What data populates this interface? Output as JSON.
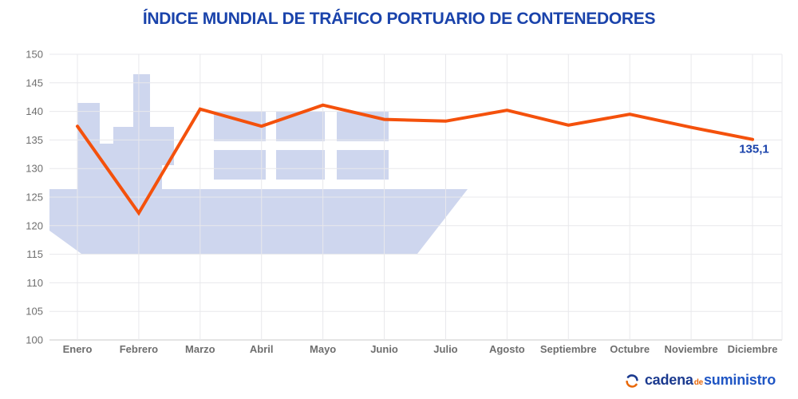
{
  "header": {
    "title": "ÍNDICE MUNDIAL DE TRÁFICO PORTUARIO DE CONTENEDORES"
  },
  "chart_data": {
    "type": "line",
    "title": "ÍNDICE MUNDIAL DE TRÁFICO PORTUARIO DE CONTENEDORES",
    "categories": [
      "Enero",
      "Febrero",
      "Marzo",
      "Abril",
      "Mayo",
      "Junio",
      "Julio",
      "Agosto",
      "Septiembre",
      "Octubre",
      "Noviembre",
      "Diciembre"
    ],
    "values": [
      137.4,
      122.2,
      140.4,
      137.4,
      141.1,
      138.6,
      138.3,
      140.2,
      137.6,
      139.5,
      137.2,
      135.1
    ],
    "yticks": [
      100,
      105,
      110,
      115,
      120,
      125,
      130,
      135,
      140,
      145,
      150
    ],
    "ylim": [
      100,
      150
    ],
    "xlabel": "",
    "ylabel": "",
    "grid": true,
    "legend": "none",
    "last_point_label": "135,1",
    "watermark": "container-ship"
  },
  "colors": {
    "title": "#1a43ab",
    "line": "#f4510c",
    "watermark": "#ced6ee",
    "grid": "#e8e8ec",
    "axis_labels": "#6e6e6e",
    "last_point_label": "#1a43ab"
  },
  "footer": {
    "logo": {
      "icon": "circular-arrows-icon",
      "part1": "cadena",
      "part2": "de",
      "part3": "suministro"
    }
  }
}
